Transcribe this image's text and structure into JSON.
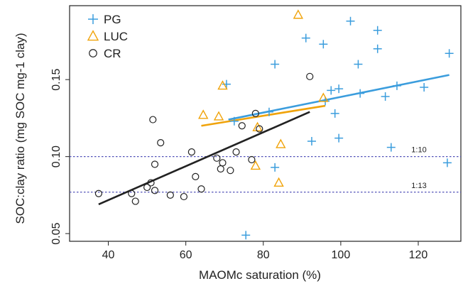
{
  "chart_data": {
    "type": "scatter",
    "xlabel": "MAOMc saturation (%)",
    "ylabel": "SOC:clay ratio (mg SOC mg-1 clay)",
    "xlim": [
      30,
      131
    ],
    "ylim": [
      0.045,
      0.198
    ],
    "x_ticks": [
      40,
      60,
      80,
      100,
      120
    ],
    "y_ticks": [
      0.05,
      0.1,
      0.15
    ],
    "x_tick_labels": [
      "40",
      "60",
      "80",
      "100",
      "120"
    ],
    "y_tick_labels": [
      "0.05",
      "0.10",
      "0.15"
    ],
    "grid": false,
    "legend_position": "top-left",
    "series": [
      {
        "name": "PG",
        "marker": "plus",
        "color": "#3b9ddd",
        "points": [
          [
            70.5,
            0.147
          ],
          [
            72.5,
            0.123
          ],
          [
            75.5,
            0.049
          ],
          [
            81.5,
            0.129
          ],
          [
            83,
            0.16
          ],
          [
            83,
            0.093
          ],
          [
            91,
            0.177
          ],
          [
            92.5,
            0.11
          ],
          [
            95.5,
            0.173
          ],
          [
            96,
            0.136
          ],
          [
            97.5,
            0.143
          ],
          [
            98.5,
            0.128
          ],
          [
            99.5,
            0.112
          ],
          [
            99.5,
            0.144
          ],
          [
            102.5,
            0.188
          ],
          [
            104.5,
            0.16
          ],
          [
            105,
            0.141
          ],
          [
            109.5,
            0.182
          ],
          [
            109.5,
            0.17
          ],
          [
            111.5,
            0.139
          ],
          [
            113,
            0.106
          ],
          [
            114.5,
            0.146
          ],
          [
            121.5,
            0.145
          ],
          [
            127.5,
            0.096
          ],
          [
            128,
            0.167
          ]
        ],
        "trend": [
          [
            71,
            0.124
          ],
          [
            128,
            0.153
          ]
        ]
      },
      {
        "name": "LUC",
        "marker": "triangle",
        "color": "#f0a30a",
        "points": [
          [
            64.5,
            0.127
          ],
          [
            68.5,
            0.126
          ],
          [
            69.5,
            0.146
          ],
          [
            78,
            0.094
          ],
          [
            78.5,
            0.119
          ],
          [
            84,
            0.083
          ],
          [
            84.5,
            0.108
          ],
          [
            89,
            0.192
          ],
          [
            95.5,
            0.138
          ]
        ],
        "trend": [
          [
            64,
            0.12
          ],
          [
            96,
            0.133
          ]
        ]
      },
      {
        "name": "CR",
        "marker": "circle",
        "color": "#222222",
        "points": [
          [
            37.5,
            0.076
          ],
          [
            46,
            0.076
          ],
          [
            47,
            0.071
          ],
          [
            50,
            0.08
          ],
          [
            51,
            0.083
          ],
          [
            51.5,
            0.124
          ],
          [
            52,
            0.095
          ],
          [
            52,
            0.078
          ],
          [
            53.5,
            0.109
          ],
          [
            56,
            0.075
          ],
          [
            59.5,
            0.074
          ],
          [
            61.5,
            0.103
          ],
          [
            62.5,
            0.087
          ],
          [
            64,
            0.079
          ],
          [
            68,
            0.099
          ],
          [
            69,
            0.092
          ],
          [
            69.5,
            0.096
          ],
          [
            71.5,
            0.091
          ],
          [
            73,
            0.103
          ],
          [
            74.5,
            0.12
          ],
          [
            77,
            0.098
          ],
          [
            78,
            0.128
          ],
          [
            79,
            0.118
          ],
          [
            92,
            0.152
          ]
        ],
        "trend": [
          [
            37.5,
            0.069
          ],
          [
            92,
            0.129
          ]
        ]
      }
    ],
    "reference_lines": [
      {
        "label": "1:10",
        "y": 0.1,
        "color": "#5050b8"
      },
      {
        "label": "1:13",
        "y": 0.0769,
        "color": "#5050b8"
      }
    ]
  }
}
